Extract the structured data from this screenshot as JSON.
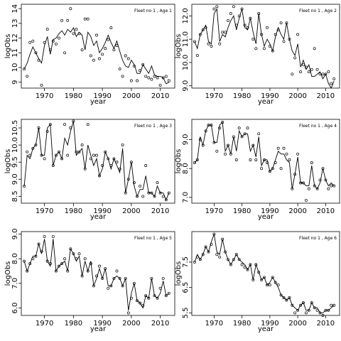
{
  "chart_data": [
    {
      "type": "line",
      "title": "Fleet no 1 , Age 1",
      "xlabel": "year",
      "ylabel": "logObs",
      "xlim": [
        1962,
        2015
      ],
      "ylim": [
        8.6,
        14.3
      ],
      "xticks": [
        1970,
        1980,
        1990,
        2000,
        2010
      ],
      "yticks": [
        9,
        10,
        11,
        12,
        13,
        14
      ],
      "x": [
        1963,
        1964,
        1965,
        1966,
        1967,
        1968,
        1969,
        1970,
        1971,
        1972,
        1973,
        1974,
        1975,
        1976,
        1977,
        1978,
        1979,
        1980,
        1981,
        1982,
        1983,
        1984,
        1985,
        1986,
        1987,
        1988,
        1989,
        1990,
        1991,
        1992,
        1993,
        1994,
        1995,
        1996,
        1997,
        1998,
        1999,
        2000,
        2001,
        2002,
        2003,
        2004,
        2005,
        2006,
        2007,
        2008,
        2009,
        2010,
        2011,
        2012,
        2013
      ],
      "fitted": [
        9.9,
        10.3,
        10.9,
        11.4,
        11.0,
        10.6,
        10.3,
        11.5,
        12.1,
        10.9,
        11.9,
        12.0,
        12.3,
        12.5,
        12.2,
        12.6,
        12.4,
        12.7,
        12.1,
        12.4,
        12.2,
        11.2,
        12.4,
        12.1,
        11.5,
        11.8,
        11.0,
        11.3,
        11.7,
        12.2,
        11.7,
        11.3,
        11.8,
        11.1,
        10.5,
        10.1,
        10.0,
        10.5,
        10.2,
        9.6,
        9.6,
        10.2,
        9.9,
        9.6,
        10.1,
        9.5,
        9.4,
        9.4,
        9.3,
        8.9,
        9.0
      ],
      "observed": [
        9.9,
        9.4,
        11.7,
        11.8,
        11.0,
        10.5,
        8.8,
        11.7,
        12.6,
        11.2,
        11.8,
        11.6,
        12.0,
        13.2,
        11.0,
        13.2,
        14.0,
        12.3,
        12.6,
        12.3,
        11.2,
        13.3,
        13.3,
        10.8,
        10.5,
        12.2,
        10.6,
        10.9,
        11.3,
        11.9,
        12.7,
        11.2,
        11.5,
        9.9,
        9.4,
        10.8,
        10.6,
        9.1,
        10.1,
        9.1,
        9.8,
        10.2,
        9.4,
        9.3,
        9.2,
        9.4,
        9.3,
        8.8,
        9.3,
        9.4,
        9.1
      ]
    },
    {
      "type": "line",
      "title": "Fleet no 1 , Age 2",
      "xlabel": "year",
      "ylabel": "logObs",
      "xlim": [
        1962,
        2015
      ],
      "ylim": [
        8.9,
        12.5
      ],
      "xticks": [
        1970,
        1980,
        1990,
        2000,
        2010
      ],
      "yticks": [
        9.0,
        10.0,
        11.0,
        12.0
      ],
      "x": [
        1963,
        1964,
        1965,
        1966,
        1967,
        1968,
        1969,
        1970,
        1971,
        1972,
        1973,
        1974,
        1975,
        1976,
        1977,
        1978,
        1979,
        1980,
        1981,
        1982,
        1983,
        1984,
        1985,
        1986,
        1987,
        1988,
        1989,
        1990,
        1991,
        1992,
        1993,
        1994,
        1995,
        1996,
        1997,
        1998,
        1999,
        2000,
        2001,
        2002,
        2003,
        2004,
        2005,
        2006,
        2007,
        2008,
        2009,
        2010,
        2011,
        2012,
        2013
      ],
      "fitted": [
        10.9,
        10.6,
        11.2,
        11.4,
        11.6,
        10.9,
        10.8,
        12.1,
        12.3,
        10.9,
        11.2,
        11.1,
        11.5,
        11.8,
        12.0,
        11.4,
        11.9,
        12.3,
        11.5,
        11.4,
        11.9,
        11.3,
        10.8,
        12.1,
        11.2,
        10.7,
        11.0,
        10.8,
        10.5,
        11.1,
        11.5,
        11.2,
        11.0,
        11.7,
        11.0,
        10.5,
        10.3,
        10.8,
        9.8,
        10.1,
        9.7,
        9.9,
        9.4,
        9.4,
        9.5,
        9.6,
        9.3,
        9.5,
        9.1,
        8.9,
        9.2
      ],
      "observed": [
        10.9,
        10.3,
        11.2,
        11.4,
        11.5,
        10.8,
        10.7,
        12.3,
        12.4,
        10.8,
        11.3,
        11.3,
        11.8,
        12.1,
        12.4,
        11.6,
        12.0,
        12.3,
        11.6,
        11.5,
        11.9,
        11.0,
        10.6,
        12.1,
        11.2,
        10.6,
        11.5,
        10.7,
        10.5,
        11.2,
        11.4,
        11.7,
        10.9,
        11.7,
        11.0,
        9.5,
        10.2,
        11.2,
        9.6,
        9.9,
        9.8,
        9.6,
        9.7,
        10.6,
        9.7,
        9.5,
        9.5,
        9.5,
        9.6,
        9.1,
        9.3
      ]
    },
    {
      "type": "line",
      "title": "Fleet no 1 , Age 3",
      "xlabel": "year",
      "ylabel": "logObs",
      "xlim": [
        1962,
        2015
      ],
      "ylim": [
        8.3,
        10.75
      ],
      "xticks": [
        1970,
        1980,
        1990,
        2000,
        2010
      ],
      "yticks": [
        8.5,
        9.0,
        9.5,
        10.0,
        10.5
      ],
      "x": [
        1963,
        1964,
        1965,
        1966,
        1967,
        1968,
        1969,
        1970,
        1971,
        1972,
        1973,
        1974,
        1975,
        1976,
        1977,
        1978,
        1979,
        1980,
        1981,
        1982,
        1983,
        1984,
        1985,
        1986,
        1987,
        1988,
        1989,
        1990,
        1991,
        1992,
        1993,
        1994,
        1995,
        1996,
        1997,
        1998,
        1999,
        2000,
        2001,
        2002,
        2003,
        2004,
        2005,
        2006,
        2007,
        2008,
        2009,
        2010,
        2011,
        2012,
        2013
      ],
      "fitted": [
        8.8,
        9.7,
        9.6,
        9.9,
        10.0,
        10.5,
        9.7,
        9.7,
        10.5,
        10.6,
        9.4,
        9.7,
        9.8,
        9.6,
        10.2,
        10.0,
        10.4,
        10.7,
        9.7,
        9.8,
        9.9,
        9.3,
        10.0,
        9.7,
        9.4,
        9.6,
        9.1,
        9.3,
        9.8,
        9.6,
        9.3,
        9.6,
        9.4,
        9.2,
        9.9,
        8.6,
        9.0,
        9.5,
        8.8,
        8.5,
        8.7,
        8.7,
        9.1,
        8.6,
        8.6,
        8.5,
        8.8,
        8.6,
        8.6,
        8.4,
        8.6
      ],
      "observed": [
        8.8,
        9.8,
        9.7,
        9.9,
        10.0,
        10.5,
        9.7,
        9.6,
        10.4,
        10.6,
        9.4,
        9.7,
        9.8,
        9.6,
        10.6,
        9.7,
        10.5,
        10.7,
        9.8,
        9.8,
        10.0,
        9.3,
        10.6,
        9.6,
        9.7,
        9.7,
        9.1,
        9.4,
        9.8,
        9.6,
        9.4,
        9.6,
        9.5,
        9.3,
        10.0,
        8.6,
        9.0,
        9.5,
        8.9,
        8.5,
        8.8,
        8.5,
        9.4,
        8.6,
        8.6,
        8.5,
        8.9,
        8.6,
        8.5,
        8.4,
        8.6
      ]
    },
    {
      "type": "line",
      "title": "Fleet no 1 , Age 4",
      "xlabel": "year",
      "ylabel": "logObs",
      "xlim": [
        1962,
        2015
      ],
      "ylim": [
        6.8,
        9.7
      ],
      "xticks": [
        1970,
        1980,
        1990,
        2000,
        2010
      ],
      "yticks": [
        7.0,
        8.0,
        9.0
      ],
      "x": [
        1963,
        1964,
        1965,
        1966,
        1967,
        1968,
        1969,
        1970,
        1971,
        1972,
        1973,
        1974,
        1975,
        1976,
        1977,
        1978,
        1979,
        1980,
        1981,
        1982,
        1983,
        1984,
        1985,
        1986,
        1987,
        1988,
        1989,
        1990,
        1991,
        1992,
        1993,
        1994,
        1995,
        1996,
        1997,
        1998,
        1999,
        2000,
        2001,
        2002,
        2003,
        2004,
        2005,
        2006,
        2007,
        2008,
        2009,
        2010,
        2011,
        2012,
        2013
      ],
      "fitted": [
        8.2,
        8.3,
        9.1,
        8.8,
        9.3,
        9.5,
        9.5,
        8.9,
        8.9,
        9.5,
        9.6,
        8.6,
        8.8,
        8.5,
        9.1,
        8.6,
        9.3,
        9.1,
        9.2,
        9.2,
        8.6,
        8.8,
        8.4,
        9.1,
        8.1,
        8.3,
        8.3,
        7.9,
        8.0,
        8.3,
        8.6,
        8.5,
        8.5,
        8.3,
        8.2,
        7.3,
        7.8,
        8.4,
        7.5,
        7.5,
        7.4,
        7.4,
        8.1,
        7.4,
        7.3,
        7.5,
        8.0,
        7.6,
        7.4,
        7.5,
        7.4
      ],
      "observed": [
        8.2,
        8.3,
        9.0,
        8.8,
        9.3,
        9.5,
        9.5,
        8.9,
        8.6,
        9.4,
        9.6,
        8.5,
        8.8,
        8.5,
        9.1,
        8.3,
        9.4,
        9.1,
        9.2,
        9.4,
        8.3,
        8.8,
        8.3,
        9.2,
        8.0,
        8.3,
        8.2,
        7.9,
        8.0,
        8.2,
        8.7,
        8.0,
        8.7,
        8.5,
        8.3,
        7.3,
        7.8,
        8.5,
        7.5,
        7.5,
        6.9,
        7.3,
        8.2,
        7.4,
        7.3,
        7.6,
        8.0,
        7.6,
        7.3,
        7.4,
        7.4
      ]
    },
    {
      "type": "line",
      "title": "Fleet no 1 , Age 5",
      "xlabel": "year",
      "ylabel": "logObs",
      "xlim": [
        1962,
        2015
      ],
      "ylim": [
        5.7,
        9.1
      ],
      "xticks": [
        1970,
        1980,
        1990,
        2000,
        2010
      ],
      "yticks": [
        6.0,
        7.0,
        8.0,
        9.0
      ],
      "x": [
        1963,
        1964,
        1965,
        1966,
        1967,
        1968,
        1969,
        1970,
        1971,
        1972,
        1973,
        1974,
        1975,
        1976,
        1977,
        1978,
        1979,
        1980,
        1981,
        1982,
        1983,
        1984,
        1985,
        1986,
        1987,
        1988,
        1989,
        1990,
        1991,
        1992,
        1993,
        1994,
        1995,
        1996,
        1997,
        1998,
        1999,
        2000,
        2001,
        2002,
        2003,
        2004,
        2005,
        2006,
        2007,
        2008,
        2009,
        2010,
        2011,
        2012,
        2013
      ],
      "fitted": [
        7.9,
        7.5,
        7.8,
        8.1,
        8.1,
        8.6,
        8.2,
        8.8,
        7.9,
        7.7,
        8.8,
        7.5,
        7.7,
        7.8,
        7.9,
        7.5,
        8.4,
        8.2,
        7.9,
        8.1,
        7.3,
        7.9,
        7.5,
        7.9,
        6.9,
        7.2,
        7.6,
        7.2,
        7.6,
        6.9,
        6.9,
        7.2,
        7.3,
        7.2,
        6.9,
        7.2,
        5.9,
        6.6,
        7.0,
        6.3,
        6.2,
        6.0,
        6.5,
        6.4,
        7.2,
        6.5,
        6.4,
        6.6,
        7.1,
        6.5,
        6.6
      ],
      "observed": [
        7.9,
        7.5,
        7.8,
        8.0,
        8.1,
        8.6,
        8.3,
        8.9,
        7.9,
        7.8,
        8.9,
        7.5,
        7.7,
        7.8,
        8.0,
        7.5,
        8.4,
        8.2,
        8.0,
        8.2,
        7.3,
        8.0,
        7.5,
        7.8,
        6.9,
        7.3,
        7.7,
        7.2,
        7.6,
        6.8,
        6.9,
        7.2,
        7.5,
        7.2,
        6.9,
        7.2,
        5.8,
        6.4,
        7.0,
        6.3,
        6.2,
        6.1,
        6.5,
        6.4,
        7.2,
        6.5,
        6.4,
        6.8,
        7.2,
        6.5,
        6.6
      ]
    },
    {
      "type": "line",
      "title": "Fleet no 1 , Age 6",
      "xlabel": "year",
      "ylabel": "logObs",
      "xlim": [
        1962,
        2015
      ],
      "ylim": [
        5.4,
        8.7
      ],
      "xticks": [
        1970,
        1980,
        1990,
        2000,
        2010
      ],
      "yticks": [
        5.5,
        6.5,
        7.5
      ],
      "x": [
        1963,
        1964,
        1965,
        1966,
        1967,
        1968,
        1969,
        1970,
        1971,
        1972,
        1973,
        1974,
        1975,
        1976,
        1977,
        1978,
        1979,
        1980,
        1981,
        1982,
        1983,
        1984,
        1985,
        1986,
        1987,
        1988,
        1989,
        1990,
        1991,
        1992,
        1993,
        1994,
        1995,
        1996,
        1997,
        1998,
        1999,
        2000,
        2001,
        2002,
        2003,
        2004,
        2005,
        2006,
        2007,
        2008,
        2009,
        2010,
        2011,
        2012,
        2013
      ],
      "fitted": [
        7.5,
        7.8,
        7.6,
        7.8,
        8.1,
        7.9,
        8.3,
        8.6,
        7.9,
        7.8,
        8.4,
        7.9,
        7.6,
        7.4,
        7.6,
        7.8,
        7.6,
        7.5,
        7.4,
        7.2,
        7.4,
        6.8,
        7.4,
        7.1,
        6.8,
        6.9,
        6.6,
        6.7,
        6.9,
        6.7,
        6.5,
        6.2,
        6.1,
        6.0,
        6.1,
        5.8,
        5.7,
        5.6,
        5.8,
        5.9,
        5.6,
        5.6,
        5.9,
        5.7,
        5.7,
        5.5,
        5.5,
        5.6,
        5.6,
        5.7,
        5.8
      ],
      "observed": [
        7.5,
        7.7,
        7.6,
        7.8,
        8.1,
        7.9,
        8.2,
        8.6,
        7.8,
        7.7,
        8.4,
        7.9,
        7.6,
        7.4,
        7.6,
        7.8,
        7.6,
        7.4,
        7.3,
        7.2,
        7.4,
        6.8,
        7.4,
        7.1,
        6.8,
        6.9,
        6.6,
        6.6,
        6.9,
        6.7,
        6.6,
        6.2,
        6.1,
        6.0,
        6.1,
        5.8,
        5.5,
        5.6,
        5.8,
        5.9,
        5.5,
        5.6,
        5.9,
        5.7,
        5.6,
        5.5,
        5.4,
        5.6,
        5.6,
        5.8,
        5.8
      ]
    }
  ]
}
